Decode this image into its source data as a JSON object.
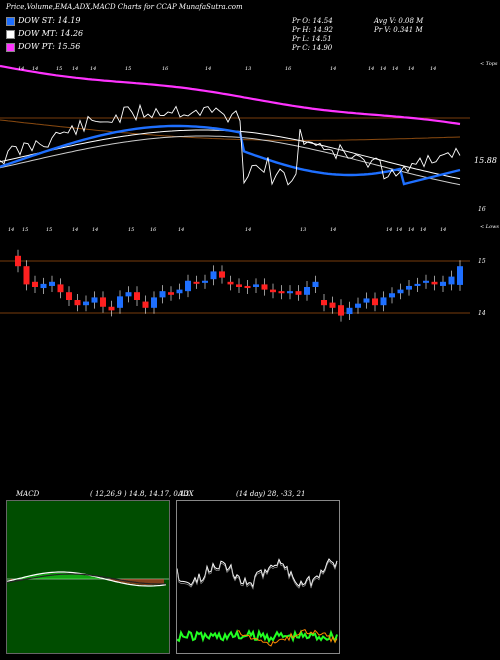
{
  "header": {
    "title": "Price,Volume,EMA,ADX,MACD Charts for CCAP MunafaSutra.com"
  },
  "legend": [
    {
      "label": "DOW ST: 14.19",
      "color": "#1e6fff"
    },
    {
      "label": "DOW MT: 14.26",
      "color": "#ffffff"
    },
    {
      "label": "DOW PT: 15.56",
      "color": "#ff33ff"
    }
  ],
  "stats": {
    "pr_o": "Pr O: 14.54",
    "pr_h": "Pr H: 14.92",
    "pr_l": "Pr L: 14.51",
    "pr_c": "Pr C: 14.90",
    "avg_v": "Avg V: 0.08 M",
    "pr_v": "Pr V: 0.341 M"
  },
  "colors": {
    "ema_short": "#1e6fff",
    "ema_mid": "#ffffff",
    "ema_long": "#ff33ff",
    "up_candle": "#1e6fff",
    "down_candle": "#ff2020",
    "ref_line": "#a05010",
    "macd_bg": "#004d00",
    "adx_line": "#ffffff",
    "di_plus": "#22ff22",
    "di_minus": "#ff8800"
  },
  "top_panel": {
    "corner_label": "< Tops",
    "date_labels": [
      "14",
      "14",
      "15",
      "14",
      "14",
      "15",
      "16",
      "14",
      "13",
      "16",
      "14",
      "14",
      "14",
      "14",
      "14",
      "14"
    ],
    "price_label_1": "15.88",
    "price_label_2": "16"
  },
  "candle_panel": {
    "corner_label": "< Lows",
    "date_labels": [
      "14",
      "15",
      "15",
      "14",
      "14",
      "15",
      "16",
      "14",
      "14",
      "13",
      "14",
      "14",
      "14",
      "14",
      "14",
      "14"
    ],
    "axis_labels": [
      "15",
      "14"
    ]
  },
  "macd": {
    "label": "MACD",
    "params": "( 12,26,9 ) 14.8, 14.17, 0.13"
  },
  "adx": {
    "label": "ADX",
    "params": "(14 day) 28, -33, 21"
  },
  "chart_data": {
    "type": "line",
    "title": "Price,Volume,EMA,ADX,MACD Charts for CCAP MunafaSutra.com",
    "series": [
      {
        "name": "DOW ST",
        "values": [
          14.19
        ]
      },
      {
        "name": "DOW MT",
        "values": [
          14.26
        ]
      },
      {
        "name": "DOW PT",
        "values": [
          15.56
        ]
      }
    ],
    "candles": [
      {
        "o": 15.1,
        "c": 14.9
      },
      {
        "o": 14.9,
        "c": 14.55
      },
      {
        "o": 14.6,
        "c": 14.5
      },
      {
        "o": 14.48,
        "c": 14.56
      },
      {
        "o": 14.52,
        "c": 14.6
      },
      {
        "o": 14.55,
        "c": 14.4
      },
      {
        "o": 14.4,
        "c": 14.25
      },
      {
        "o": 14.25,
        "c": 14.15
      },
      {
        "o": 14.15,
        "c": 14.22
      },
      {
        "o": 14.2,
        "c": 14.3
      },
      {
        "o": 14.3,
        "c": 14.12
      },
      {
        "o": 14.12,
        "c": 14.05
      },
      {
        "o": 14.1,
        "c": 14.32
      },
      {
        "o": 14.32,
        "c": 14.4
      },
      {
        "o": 14.4,
        "c": 14.25
      },
      {
        "o": 14.22,
        "c": 14.1
      },
      {
        "o": 14.1,
        "c": 14.3
      },
      {
        "o": 14.3,
        "c": 14.42
      },
      {
        "o": 14.4,
        "c": 14.35
      },
      {
        "o": 14.38,
        "c": 14.45
      },
      {
        "o": 14.42,
        "c": 14.62
      },
      {
        "o": 14.6,
        "c": 14.58
      },
      {
        "o": 14.58,
        "c": 14.62
      },
      {
        "o": 14.65,
        "c": 14.8
      },
      {
        "o": 14.8,
        "c": 14.68
      },
      {
        "o": 14.6,
        "c": 14.55
      },
      {
        "o": 14.55,
        "c": 14.5
      },
      {
        "o": 14.52,
        "c": 14.48
      },
      {
        "o": 14.5,
        "c": 14.55
      },
      {
        "o": 14.55,
        "c": 14.45
      },
      {
        "o": 14.45,
        "c": 14.4
      },
      {
        "o": 14.42,
        "c": 14.38
      },
      {
        "o": 14.38,
        "c": 14.42
      },
      {
        "o": 14.42,
        "c": 14.35
      },
      {
        "o": 14.35,
        "c": 14.5
      },
      {
        "o": 14.5,
        "c": 14.6
      },
      {
        "o": 14.25,
        "c": 14.15
      },
      {
        "o": 14.2,
        "c": 14.1
      },
      {
        "o": 14.15,
        "c": 13.95
      },
      {
        "o": 13.98,
        "c": 14.1
      },
      {
        "o": 14.1,
        "c": 14.18
      },
      {
        "o": 14.2,
        "c": 14.28
      },
      {
        "o": 14.28,
        "c": 14.15
      },
      {
        "o": 14.15,
        "c": 14.3
      },
      {
        "o": 14.3,
        "c": 14.38
      },
      {
        "o": 14.38,
        "c": 14.45
      },
      {
        "o": 14.45,
        "c": 14.52
      },
      {
        "o": 14.52,
        "c": 14.56
      },
      {
        "o": 14.58,
        "c": 14.62
      },
      {
        "o": 14.6,
        "c": 14.55
      },
      {
        "o": 14.52,
        "c": 14.6
      },
      {
        "o": 14.55,
        "c": 14.7
      },
      {
        "o": 14.54,
        "c": 14.9
      }
    ]
  }
}
